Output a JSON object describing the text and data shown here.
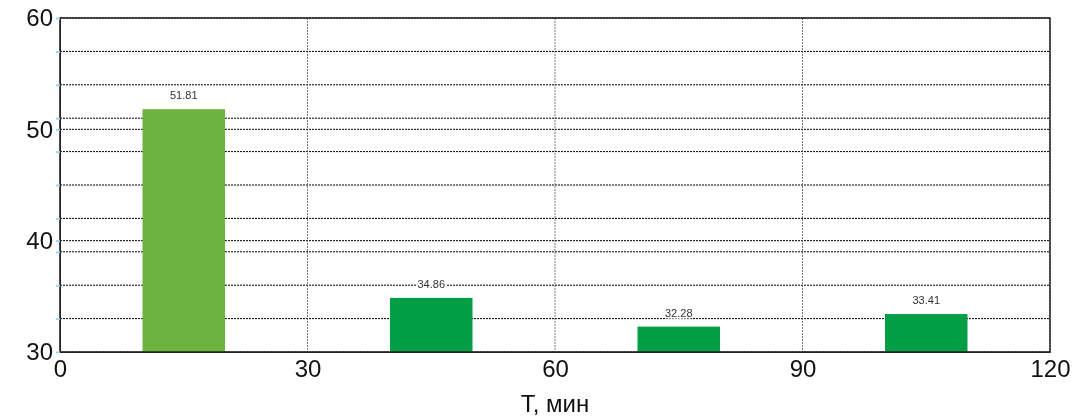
{
  "chart_data": {
    "type": "bar",
    "xlabel": "T, мин",
    "x": [
      15,
      45,
      75,
      105
    ],
    "values": [
      51.81,
      34.86,
      32.28,
      33.41
    ],
    "colors": [
      "#6db33f",
      "#009f45",
      "#009f45",
      "#009f45"
    ],
    "xlim": [
      0,
      120
    ],
    "xticks": [
      0,
      30,
      60,
      90,
      120
    ],
    "ylim": [
      30,
      60
    ],
    "yticks": [
      30,
      {
        "value": 33,
        "label": null
      },
      {
        "value": 36,
        "label": null
      },
      {
        "value": 39,
        "label": null
      },
      40,
      {
        "value": 42,
        "label": null
      },
      {
        "value": 45,
        "label": null
      },
      {
        "value": 48,
        "label": null
      },
      50,
      {
        "value": 51,
        "label": null
      },
      {
        "value": 54,
        "label": null
      },
      {
        "value": 57,
        "label": null
      },
      60
    ],
    "grid": true,
    "data_labels": true
  }
}
